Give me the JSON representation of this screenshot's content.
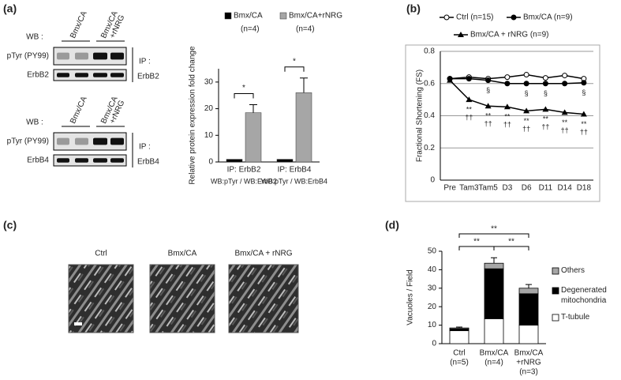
{
  "panel_labels": [
    "(a)",
    "(b)",
    "(c)",
    "(d)"
  ],
  "blots": [
    {
      "wb_label": "WB :",
      "lanes": [
        [
          "Bmx/CA"
        ],
        [
          "Bmx/CA",
          "+rNRG"
        ]
      ],
      "rows": [
        "pTyr (PY99)",
        "ErbB2"
      ],
      "ip_label": "IP :",
      "ip_target": "ErbB2"
    },
    {
      "wb_label": "WB :",
      "lanes": [
        [
          "Bmx/CA"
        ],
        [
          "Bmx/CA",
          "+rNRG"
        ]
      ],
      "rows": [
        "pTyr (PY99)",
        "ErbB4"
      ],
      "ip_label": "IP :",
      "ip_target": "ErbB4"
    }
  ],
  "micrographs": [
    "Ctrl",
    "Bmx/CA",
    "Bmx/CA + rNRG"
  ],
  "chart_data": [
    {
      "type": "bar",
      "y_label": "Relative protein expression fold change",
      "categories": [
        "IP: ErbB2",
        "IP: ErbB4"
      ],
      "category_notes": [
        "WB:pTyr / WB:ErbB2",
        "WB:pTyr / WB:ErbB4"
      ],
      "series": [
        {
          "name": "Bmx/CA",
          "note": "(n=4)",
          "color": "#000000",
          "values": [
            1,
            1
          ]
        },
        {
          "name": "Bmx/CA+rNRG",
          "note": "(n=4)",
          "color": "#a6a6a6",
          "values": [
            18.5,
            26
          ],
          "errors": [
            3,
            5.5
          ]
        }
      ],
      "ylim": [
        0,
        35
      ],
      "yticks": [
        0,
        10,
        20,
        30
      ],
      "significance": [
        {
          "category": 0,
          "label": "*"
        },
        {
          "category": 1,
          "label": "*"
        }
      ]
    },
    {
      "type": "line",
      "y_label": "Fractional Shortening (FS)",
      "categories": [
        "Pre",
        "Tam3",
        "Tam5",
        "D3",
        "D6",
        "D11",
        "D14",
        "D18"
      ],
      "series": [
        {
          "name": "Ctrl (n=15)",
          "color": "#000000",
          "marker": "open-circle",
          "values": [
            0.63,
            0.64,
            0.63,
            0.64,
            0.655,
            0.635,
            0.65,
            0.63
          ]
        },
        {
          "name": "Bmx/CA (n=9)",
          "color": "#000000",
          "marker": "circle",
          "values": [
            0.63,
            0.63,
            0.62,
            0.6,
            0.6,
            0.6,
            0.6,
            0.605
          ]
        },
        {
          "name": "Bmx/CA + rNRG (n=9)",
          "color": "#000000",
          "marker": "triangle",
          "values": [
            0.62,
            0.5,
            0.46,
            0.455,
            0.43,
            0.44,
            0.42,
            0.41
          ]
        }
      ],
      "ylim": [
        0,
        0.8
      ],
      "yticks": [
        0,
        0.2,
        0.4,
        0.6,
        0.8
      ],
      "grid": true,
      "annotations": [
        {
          "series": 1,
          "indices": [
            2,
            4,
            5,
            7
          ],
          "labels": [
            "§"
          ]
        },
        {
          "series": 2,
          "indices": [
            1,
            2,
            3,
            4,
            5,
            6,
            7
          ],
          "labels": [
            "**",
            "††"
          ]
        }
      ]
    },
    {
      "type": "stacked-bar",
      "y_label": "Vacuoles / Field",
      "categories": [
        [
          "Ctrl",
          "(n=5)"
        ],
        [
          "Bmx/CA",
          "(n=4)"
        ],
        [
          "Bmx/CA",
          "+rNRG",
          "(n=3)"
        ]
      ],
      "series": [
        {
          "name": "T-tubule",
          "color": "#ffffff",
          "values": [
            7,
            13.5,
            10
          ]
        },
        {
          "name": "Degenerated mitochondria",
          "color": "#000000",
          "values": [
            1,
            27,
            17
          ]
        },
        {
          "name": "Others",
          "color": "#a6a6a6",
          "values": [
            0.5,
            3,
            3
          ],
          "errors": [
            0.5,
            3,
            2
          ]
        }
      ],
      "ylim": [
        0,
        50
      ],
      "yticks": [
        0,
        10,
        20,
        30,
        40,
        50
      ],
      "significance": [
        {
          "pair": [
            0,
            1
          ],
          "label": "**"
        },
        {
          "pair": [
            1,
            2
          ],
          "label": "**"
        },
        {
          "pair": [
            0,
            2
          ],
          "label": "**"
        }
      ]
    }
  ]
}
